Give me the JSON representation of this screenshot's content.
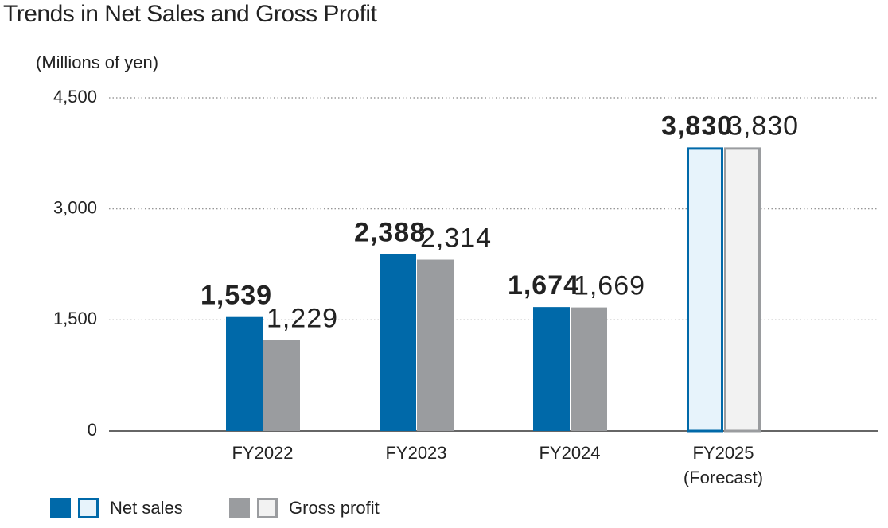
{
  "chart_data": {
    "type": "bar",
    "title": "Trends in Net Sales and Gross Profit",
    "y_label": "(Millions of yen)",
    "categories": [
      "FY2022",
      "FY2023",
      "FY2024",
      "FY2025"
    ],
    "category_notes": [
      null,
      null,
      null,
      "(Forecast)"
    ],
    "series": [
      {
        "name": "Net sales",
        "color": "#0069a9",
        "forecast_fill": "#e7f3fb",
        "label_color": "#0a6aa8",
        "values": [
          1539,
          2388,
          1674,
          3830
        ],
        "value_labels": [
          "1,539",
          "2,388",
          "1,674",
          "3,830"
        ]
      },
      {
        "name": "Gross profit",
        "color": "#9a9c9f",
        "forecast_fill": "#f2f2f2",
        "label_color": "#8e9093",
        "values": [
          1229,
          2314,
          1669,
          3830
        ],
        "value_labels": [
          "1,229",
          "2,314",
          "1,669",
          "3,830"
        ]
      }
    ],
    "ylim": [
      0,
      4500
    ],
    "yticks": [
      0,
      {
        "value": 1500,
        "label": "1,500"
      },
      {
        "value": 3000,
        "label": "3,000"
      },
      {
        "value": 4500,
        "label": "4,500"
      }
    ],
    "grid": true
  }
}
